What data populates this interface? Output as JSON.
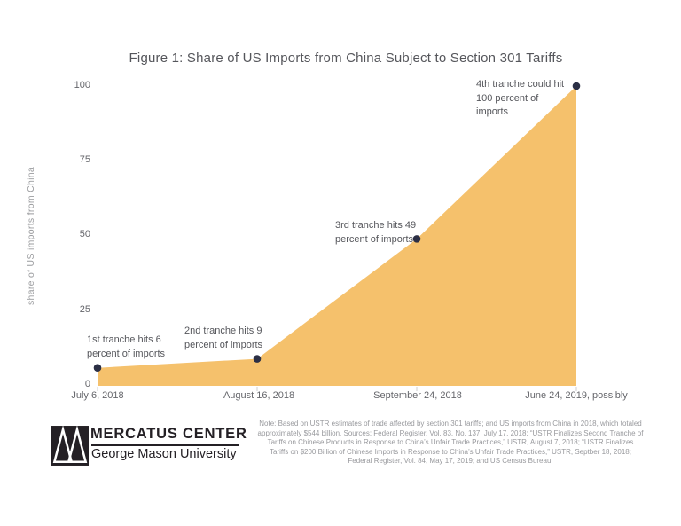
{
  "header": {
    "title": "Figure 1: Share of US Imports from China Subject to Section 301 Tariffs"
  },
  "chart_data": {
    "type": "area",
    "title": "Figure 1: Share of US Imports from China Subject to Section 301 Tariffs",
    "xlabel": "",
    "ylabel": "share of US imports from China",
    "ylim": [
      0,
      100
    ],
    "grid": false,
    "legend": false,
    "yticks": [
      "100",
      "75",
      "50",
      "25",
      "0"
    ],
    "categories": [
      "July 6, 2018",
      "August 16, 2018",
      "September 24, 2018",
      "June 24, 2019, possibly"
    ],
    "values": [
      6,
      9,
      49,
      100
    ],
    "fill_color": "#F5C16C",
    "point_color": "#2B2F45",
    "tick_color": "#cfcfd2",
    "annotations": [
      {
        "lines": [
          "1st tranche hits 6",
          "percent of imports"
        ]
      },
      {
        "lines": [
          "2nd tranche hits 9",
          "percent of imports"
        ]
      },
      {
        "lines": [
          "3rd tranche hits 49",
          "percent of imports"
        ]
      },
      {
        "lines": [
          "4th tranche could hit",
          "100 percent of",
          "imports"
        ]
      }
    ]
  },
  "footer": {
    "note_lines": {
      "full": "Note: Based on USTR estimates of trade affected by section 301 tariffs; and US imports from China in 2018, which totaled approximately $544 billion. Sources: Federal Register, Vol. 83, No. 137, July 17, 2018; “USTR Finalizes Second Tranche of Tariffs on Chinese Products in Response to China’s Unfair Trade Practices,” USTR, August 7, 2018; “USTR Finalizes Tariffs on $200 Billion of Chinese Imports in Response to China’s Unfair Trade Practices,” USTR, Septber 18, 2018; Federal Register, Vol. 84, May 17, 2019; and US Census Bureau."
    },
    "logo": {
      "org": "MERCATUS CENTER",
      "university": "George Mason University",
      "mark": "mercatus-bridge-logo",
      "color": "#242025"
    }
  }
}
